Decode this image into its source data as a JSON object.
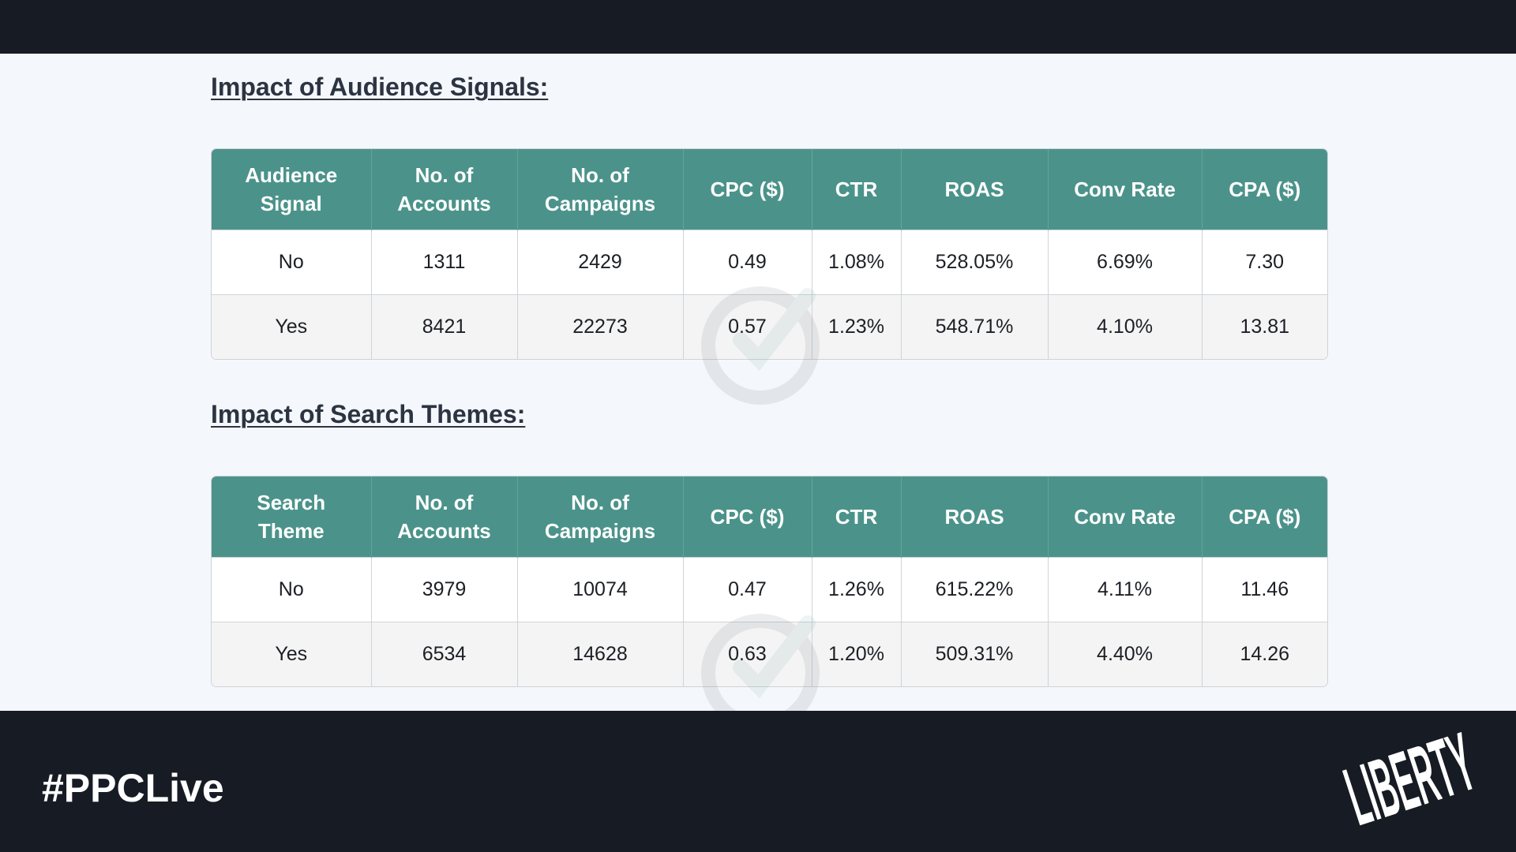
{
  "sections": [
    {
      "title": "Impact of Audience Signals:",
      "headers": [
        "Audience\nSignal",
        "No. of\nAccounts",
        "No. of\nCampaigns",
        "CPC ($)",
        "CTR",
        "ROAS",
        "Conv Rate",
        "CPA ($)"
      ],
      "rows": [
        [
          "No",
          "1311",
          "2429",
          "0.49",
          "1.08%",
          "528.05%",
          "6.69%",
          "7.30"
        ],
        [
          "Yes",
          "8421",
          "22273",
          "0.57",
          "1.23%",
          "548.71%",
          "4.10%",
          "13.81"
        ]
      ]
    },
    {
      "title": "Impact of Search Themes:",
      "headers": [
        "Search\nTheme",
        "No. of\nAccounts",
        "No. of\nCampaigns",
        "CPC ($)",
        "CTR",
        "ROAS",
        "Conv Rate",
        "CPA ($)"
      ],
      "rows": [
        [
          "No",
          "3979",
          "10074",
          "0.47",
          "1.26%",
          "615.22%",
          "4.11%",
          "11.46"
        ],
        [
          "Yes",
          "6534",
          "14628",
          "0.63",
          "1.20%",
          "509.31%",
          "4.40%",
          "14.26"
        ]
      ]
    }
  ],
  "footer": {
    "hashtag": "#PPCLive",
    "logo_text": "LIBERTY"
  },
  "colors": {
    "header_bg": "#4b938a",
    "dark_bg": "#171c24",
    "content_bg": "#f4f7fb"
  },
  "icons": {
    "watermark": "checkmark-circle-watermark-icon"
  }
}
